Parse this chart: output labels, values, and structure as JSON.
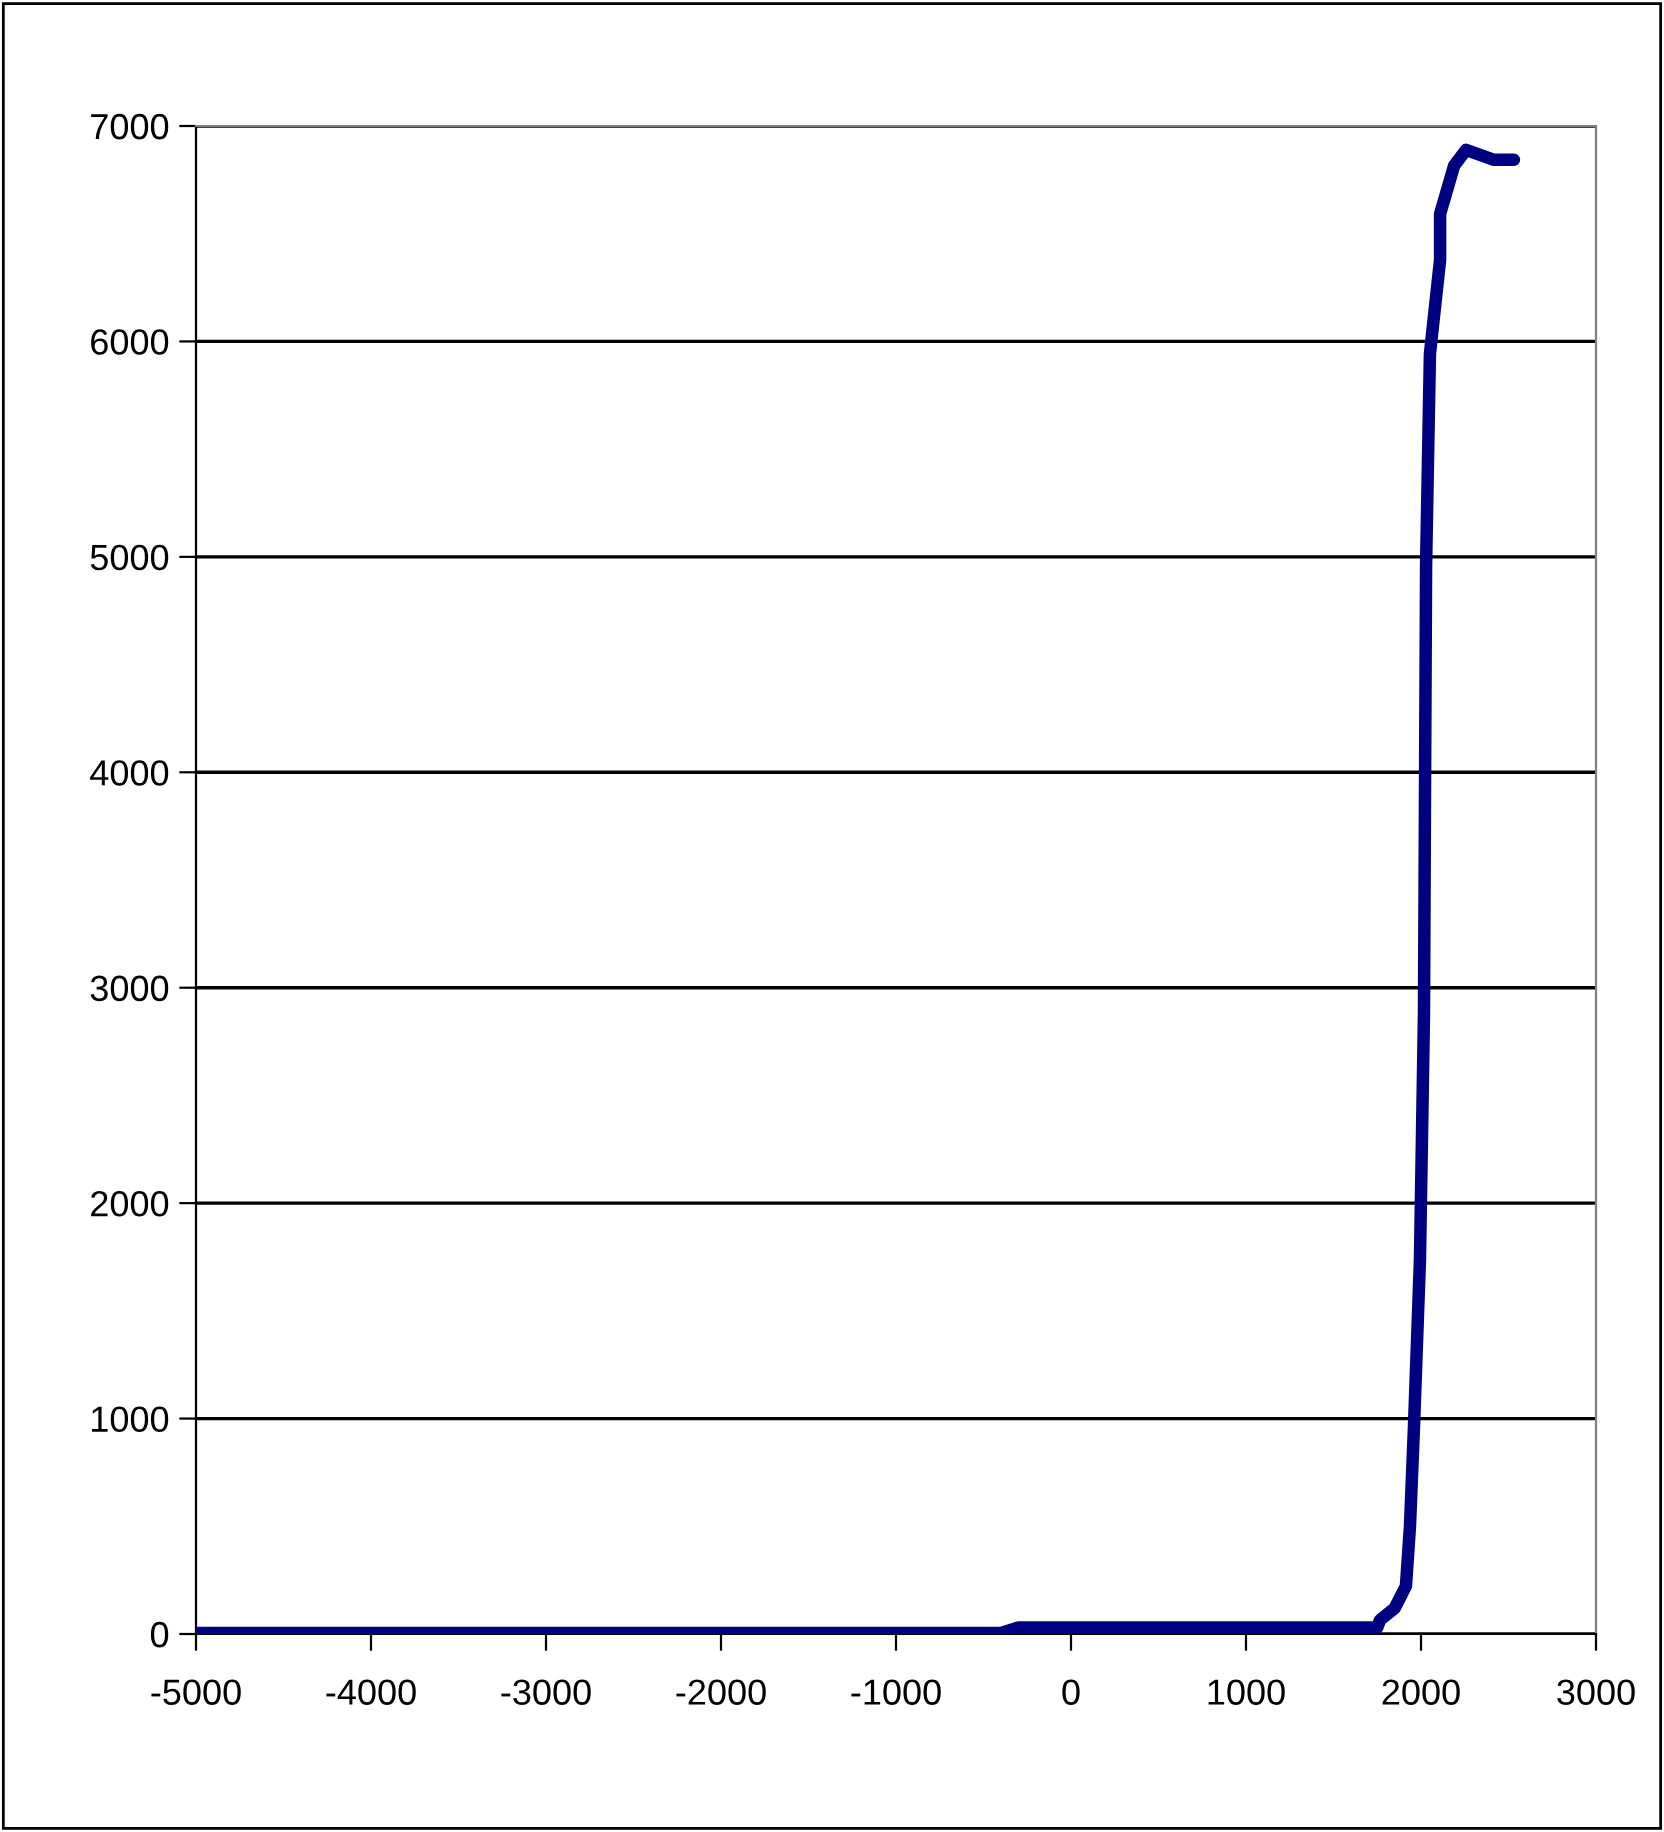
{
  "chart_data": {
    "type": "line",
    "x": [
      -5000,
      -4000,
      -3000,
      -2000,
      -1000,
      -400,
      -300,
      0,
      1000,
      1500,
      1750,
      1766,
      1850,
      1914,
      1937,
      1960,
      1994,
      2017,
      2029,
      2051,
      2109,
      2109,
      2189,
      2257,
      2417,
      2531
    ],
    "series": [
      {
        "color": "#000080",
        "values": [
          5,
          5,
          5,
          5,
          5,
          5,
          30,
          30,
          30,
          30,
          30,
          65,
          120,
          223,
          500,
          965,
          1736,
          2878,
          4958,
          5942,
          6378,
          6592,
          6815,
          6889,
          6843,
          6843
        ]
      }
    ],
    "xlim": [
      -5000,
      3000
    ],
    "xticks": [
      -5000,
      -4000,
      -3000,
      -2000,
      -1000,
      0,
      1000,
      2000,
      3000
    ],
    "ylim": [
      0,
      7000
    ],
    "yticks": [
      0,
      1000,
      2000,
      3000,
      4000,
      5000,
      6000,
      7000
    ],
    "grid": "y",
    "marker": "none",
    "line_style": "solid"
  }
}
